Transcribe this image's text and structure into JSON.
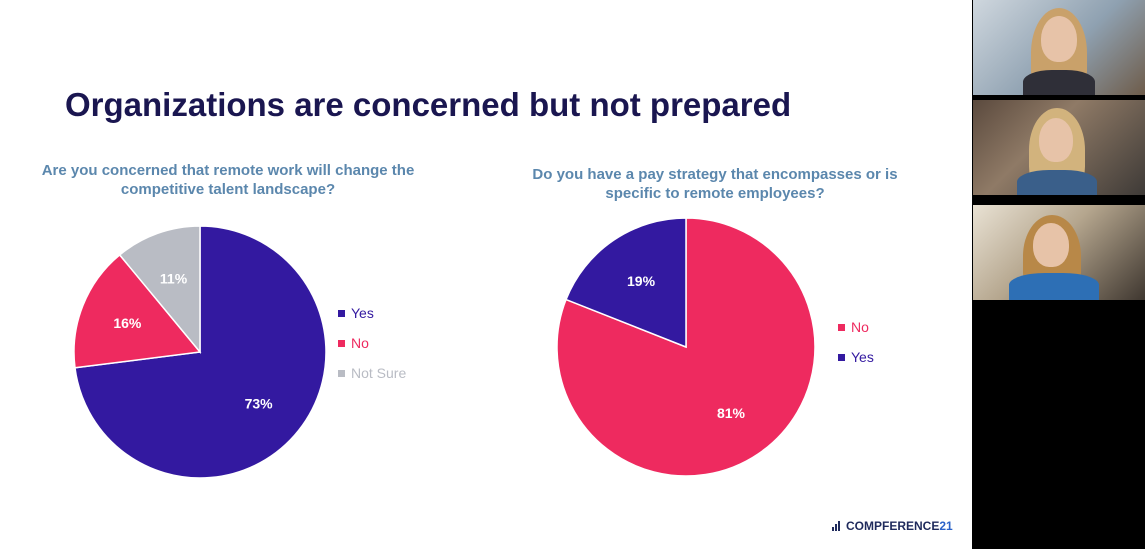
{
  "slide": {
    "title": "Organizations are concerned but not prepared",
    "brand": {
      "name": "COMPFERENCE",
      "number": "21"
    }
  },
  "chart_data": [
    {
      "type": "pie",
      "title": "Are you concerned that remote work will change the competitive talent landscape?",
      "slices": [
        {
          "label": "Yes",
          "value": 73,
          "display": "73%",
          "color": "#3319a0"
        },
        {
          "label": "No",
          "value": 16,
          "display": "16%",
          "color": "#ee2a5f"
        },
        {
          "label": "Not Sure",
          "value": 11,
          "display": "11%",
          "color": "#b9bcc4"
        }
      ],
      "legend": "right"
    },
    {
      "type": "pie",
      "title": "Do you have a pay strategy that encompasses or is specific to remote employees?",
      "slices": [
        {
          "label": "No",
          "value": 81,
          "display": "81%",
          "color": "#ee2a5f"
        },
        {
          "label": "Yes",
          "value": 19,
          "display": "19%",
          "color": "#3319a0"
        }
      ],
      "legend": "right"
    }
  ],
  "participants": [
    {
      "icon": "participant-video-icon"
    },
    {
      "icon": "participant-video-icon"
    },
    {
      "icon": "participant-video-icon"
    }
  ]
}
